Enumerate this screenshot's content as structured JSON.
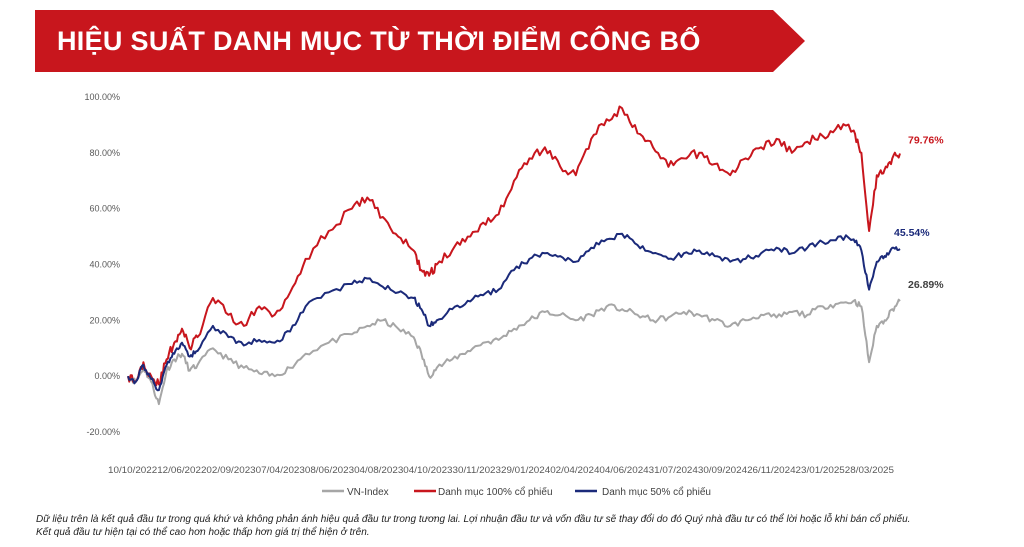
{
  "title": "HIỆU SUẤT DANH MỤC TỪ THỜI ĐIỂM CÔNG BỐ",
  "colors": {
    "banner": "#c8161d",
    "vnindex": "#a6a6a6",
    "p100": "#c8161d",
    "p50": "#1b2a7a"
  },
  "chart_data": {
    "type": "line",
    "yticks": [
      "100.00%",
      "80.00%",
      "60.00%",
      "40.00%",
      "20.00%",
      "0.00%",
      "-20.00%"
    ],
    "ytick_values": [
      100,
      80,
      60,
      40,
      20,
      0,
      -20
    ],
    "ylim": [
      -20,
      100
    ],
    "xaxis_text": "10/10/202212/06/202202/09/202307/04/202308/06/202304/08/202304/10/202330/11/202329/01/202402/04/202404/06/202431/07/202430/09/202426/11/202423/01/202528/03/2025",
    "x_range": [
      0,
      100
    ],
    "grid": false,
    "legend_position": "bottom",
    "series": [
      {
        "name": "VN-Index",
        "color": "#a6a6a6",
        "end_label": "26.89%",
        "x": [
          0,
          1,
          2,
          3,
          4,
          5,
          6,
          7,
          8,
          9,
          11,
          13,
          15,
          17,
          19,
          21,
          23,
          26,
          29,
          31,
          33,
          35,
          37,
          38,
          39,
          40,
          42,
          44,
          46,
          48,
          50,
          52,
          54,
          56,
          58,
          60,
          62,
          64,
          66,
          68,
          70,
          72,
          74,
          76,
          78,
          80,
          82,
          84,
          86,
          88,
          90,
          92,
          94,
          95,
          96,
          97,
          98,
          99,
          100
        ],
        "y": [
          0,
          -2,
          3,
          -2,
          -10,
          2,
          6,
          8,
          2,
          4,
          10,
          6,
          3,
          1,
          0,
          3,
          8,
          12,
          15,
          18,
          20,
          17,
          14,
          8,
          0,
          3,
          6,
          9,
          12,
          13,
          17,
          20,
          23,
          22,
          20,
          22,
          25,
          24,
          22,
          20,
          21,
          23,
          22,
          20,
          18,
          20,
          22,
          21,
          23,
          22,
          25,
          26,
          27,
          25,
          5,
          18,
          20,
          24,
          26.89
        ]
      },
      {
        "name": "Danh mục 100% cổ phiếu",
        "color": "#c8161d",
        "end_label": "79.76%",
        "x": [
          0,
          1,
          2,
          3,
          4,
          5,
          6,
          7,
          8,
          9,
          11,
          13,
          15,
          17,
          19,
          21,
          23,
          26,
          29,
          31,
          33,
          35,
          37,
          38,
          39,
          40,
          42,
          44,
          46,
          48,
          50,
          52,
          54,
          56,
          58,
          60,
          62,
          64,
          66,
          68,
          70,
          72,
          74,
          76,
          78,
          80,
          82,
          84,
          86,
          88,
          90,
          92,
          94,
          95,
          96,
          97,
          98,
          99,
          100
        ],
        "y": [
          0,
          -2,
          5,
          0,
          -3,
          6,
          12,
          17,
          10,
          14,
          28,
          22,
          18,
          25,
          22,
          30,
          42,
          52,
          60,
          64,
          57,
          50,
          45,
          38,
          36,
          40,
          45,
          50,
          55,
          58,
          70,
          78,
          82,
          75,
          72,
          85,
          92,
          96,
          87,
          82,
          75,
          78,
          80,
          76,
          72,
          78,
          82,
          85,
          80,
          84,
          86,
          90,
          88,
          80,
          52,
          72,
          74,
          78,
          79.76
        ]
      },
      {
        "name": "Danh mục 50% cổ phiếu",
        "color": "#1b2a7a",
        "end_label": "45.54%",
        "x": [
          0,
          1,
          2,
          3,
          4,
          5,
          6,
          7,
          8,
          9,
          11,
          13,
          15,
          17,
          19,
          21,
          23,
          26,
          29,
          31,
          33,
          35,
          37,
          38,
          39,
          40,
          42,
          44,
          46,
          48,
          50,
          52,
          54,
          56,
          58,
          60,
          62,
          64,
          66,
          68,
          70,
          72,
          74,
          76,
          78,
          80,
          82,
          84,
          86,
          88,
          90,
          92,
          94,
          95,
          96,
          97,
          98,
          99,
          100
        ],
        "y": [
          0,
          -2,
          4,
          -1,
          -5,
          4,
          8,
          12,
          7,
          9,
          18,
          14,
          11,
          13,
          12,
          16,
          25,
          30,
          33,
          35,
          32,
          30,
          28,
          24,
          18,
          20,
          24,
          27,
          29,
          31,
          38,
          42,
          44,
          43,
          41,
          46,
          49,
          51,
          47,
          44,
          42,
          44,
          45,
          43,
          41,
          42,
          44,
          46,
          44,
          46,
          48,
          50,
          49,
          45,
          31,
          41,
          43,
          46,
          45.54
        ]
      }
    ]
  },
  "footnote": {
    "line1": "Dữ liệu trên là kết quả đầu tư trong quá khứ và không phản ánh hiệu quả đầu tư trong tương lai. Lợi nhuận đầu tư và vốn đầu tư sẽ thay đổi do đó Quý nhà đầu tư có thể lời hoặc lỗ khi bán cổ phiếu.",
    "line2": "Kết quả đầu tư hiện tại có thể cao hơn hoặc thấp hơn giá trị thể hiện ở trên."
  }
}
